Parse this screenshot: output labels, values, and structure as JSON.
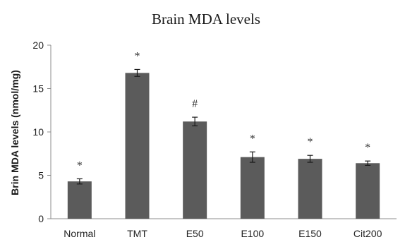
{
  "chart_data": {
    "type": "bar",
    "title": "Brain MDA levels",
    "xlabel": "",
    "ylabel": "Brin MDA levels (nmol/mg)",
    "ylim": [
      0,
      20
    ],
    "yticks": [
      "0",
      "5",
      "10",
      "15",
      "20"
    ],
    "categories": [
      "Normal",
      "TMT",
      "E50",
      "E100",
      "E150",
      "Cit200"
    ],
    "values": [
      4.3,
      16.8,
      11.2,
      7.1,
      6.9,
      6.4
    ],
    "errors": [
      0.3,
      0.4,
      0.5,
      0.6,
      0.4,
      0.25
    ],
    "annotations": [
      "*",
      "*",
      "#",
      "*",
      "*",
      "*"
    ],
    "grid": false,
    "legend": "none",
    "bar_color": "#5b5b5b"
  }
}
